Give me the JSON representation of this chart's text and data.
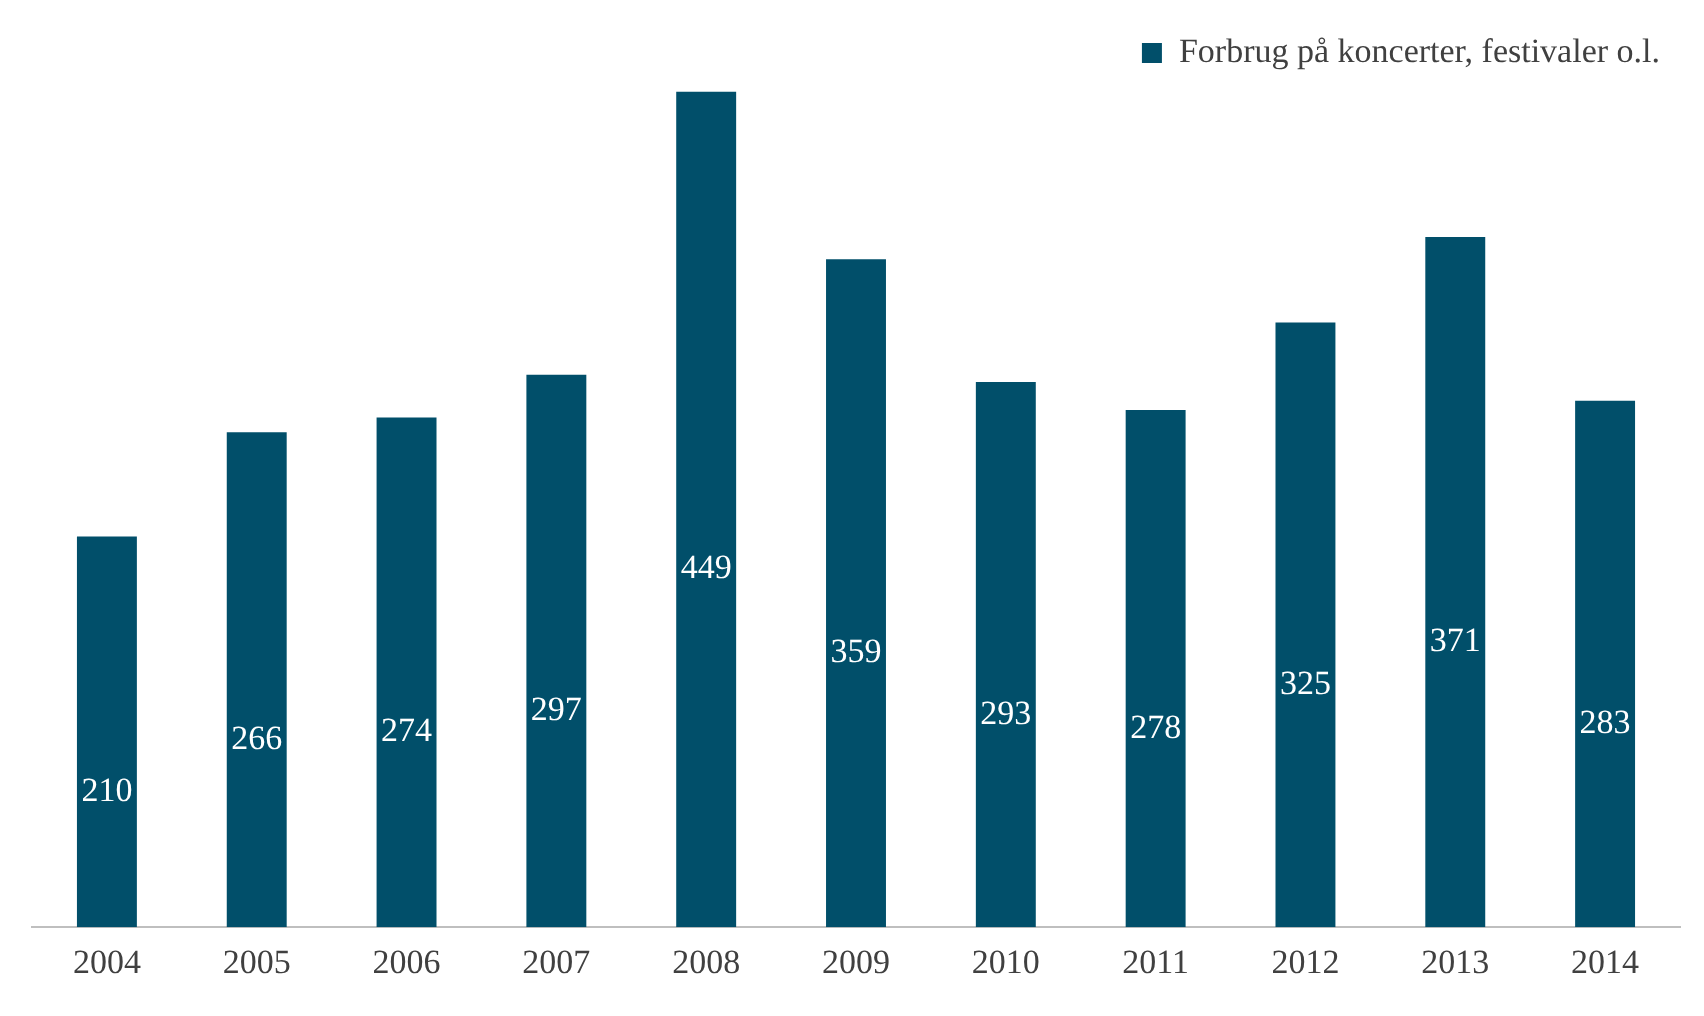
{
  "chart_data": {
    "type": "bar",
    "categories": [
      "2004",
      "2005",
      "2006",
      "2007",
      "2008",
      "2009",
      "2010",
      "2011",
      "2012",
      "2013",
      "2014"
    ],
    "series": [
      {
        "name": "Forbrug på koncerter, festivaler o.l.",
        "color": "#014f6a",
        "values": [
          210,
          266,
          274,
          297,
          449,
          359,
          293,
          278,
          325,
          371,
          283
        ]
      }
    ],
    "data_labels": true,
    "legend": "top right",
    "grid": false,
    "tick_labels": "x"
  }
}
